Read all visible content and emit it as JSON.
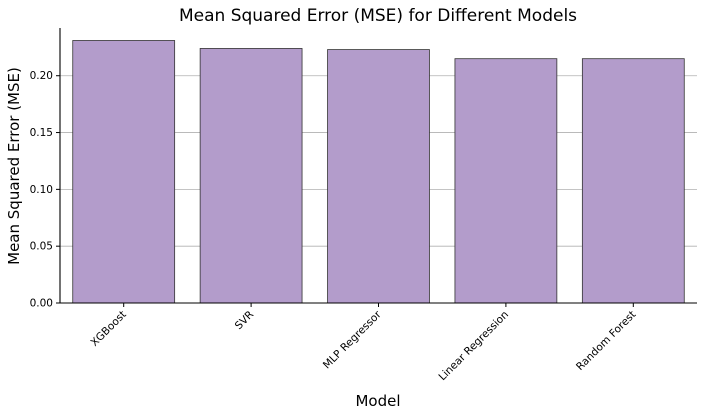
{
  "chart_data": {
    "type": "bar",
    "title": "Mean Squared Error (MSE) for Different Models",
    "xlabel": "Model",
    "ylabel": "Mean Squared Error (MSE)",
    "categories": [
      "XGBoost",
      "SVR",
      "MLP Regressor",
      "Linear Regression",
      "Random Forest"
    ],
    "values": [
      0.231,
      0.224,
      0.223,
      0.215,
      0.215
    ],
    "ylim": [
      0,
      0.242
    ],
    "yticks": [
      "0.00",
      "0.05",
      "0.10",
      "0.15",
      "0.20"
    ],
    "grid": "y",
    "legend": "none",
    "colors": {
      "bar_fill": "#b39ccb",
      "bar_edge": "#333333",
      "grid": "#b0b0b0",
      "axis": "#000000"
    }
  }
}
